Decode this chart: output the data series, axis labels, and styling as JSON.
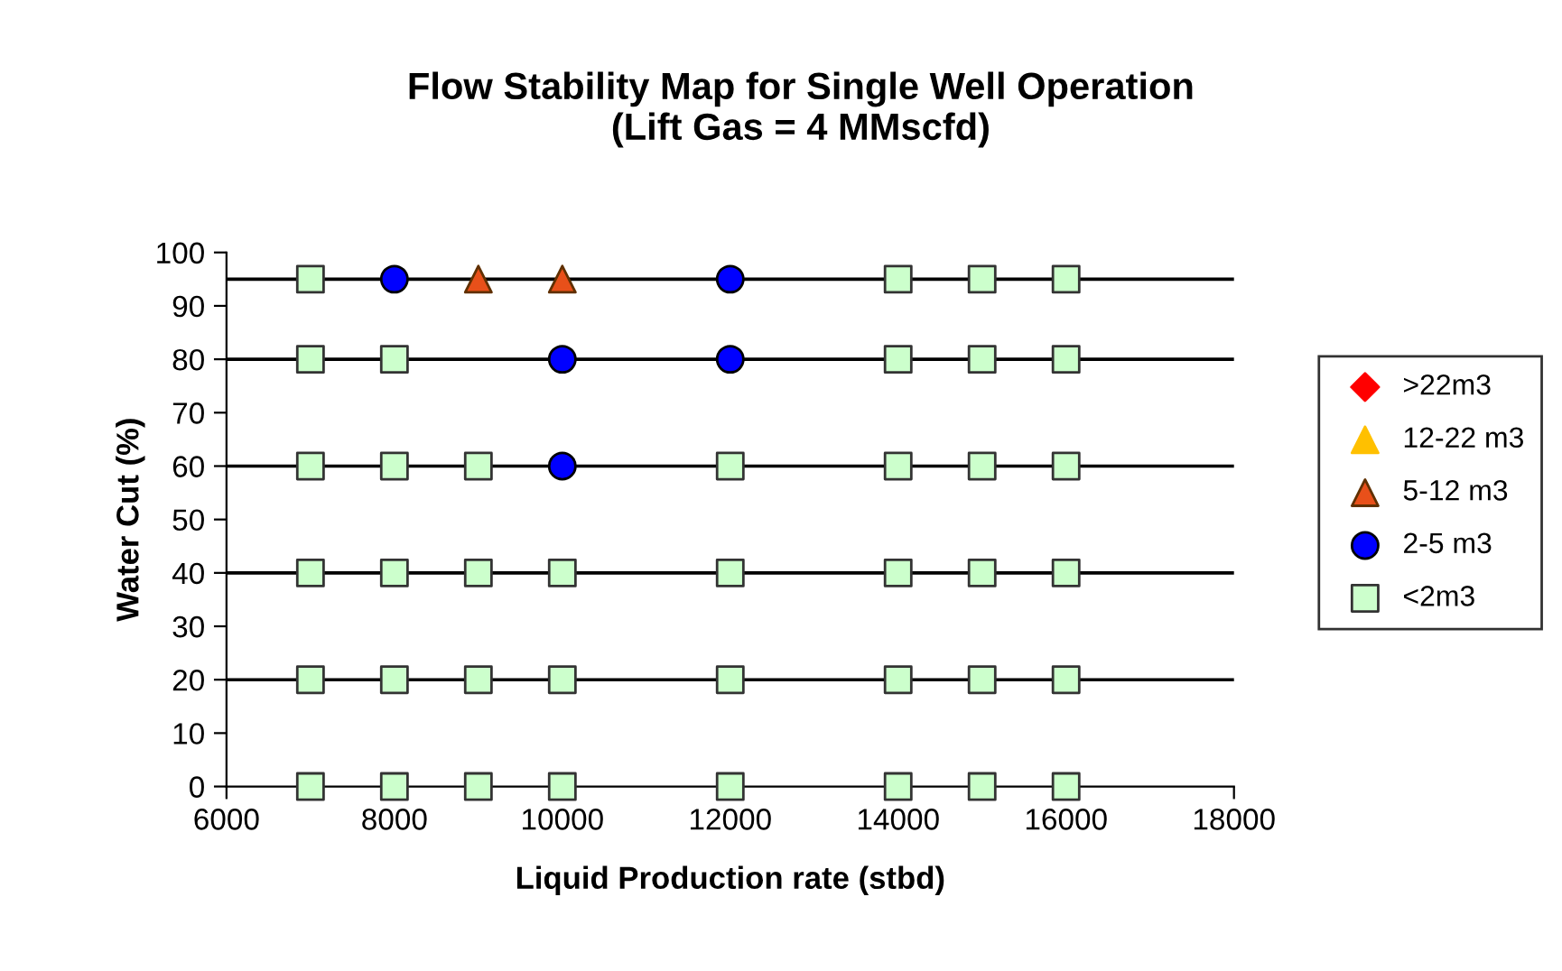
{
  "chart_data": {
    "type": "scatter",
    "title": "Flow Stability Map for Single Well Operation\n(Lift Gas = 4 MMscfd)",
    "xlabel": "Liquid Production rate (stbd)",
    "ylabel": "Water Cut (%)",
    "xlim": [
      6000,
      18000
    ],
    "xticks": [
      6000,
      8000,
      10000,
      12000,
      14000,
      16000,
      18000
    ],
    "ylim": [
      0,
      100
    ],
    "yticks": [
      0,
      10,
      20,
      30,
      40,
      50,
      60,
      70,
      80,
      90,
      100
    ],
    "grid": false,
    "legend": "right",
    "ref_lines": [
      {
        "axis": "y",
        "value": 95,
        "color": "#000000"
      },
      {
        "axis": "y",
        "value": 80,
        "color": "#000000"
      },
      {
        "axis": "y",
        "value": 60,
        "color": "#000000"
      },
      {
        "axis": "y",
        "value": 40,
        "color": "#000000"
      },
      {
        "axis": "y",
        "value": 20,
        "color": "#000000"
      }
    ],
    "series": [
      {
        "name": ">22m3",
        "color": "#ff0000",
        "marker": "diamond"
      },
      {
        "name": "12-22 m3",
        "color": "#ffc000",
        "marker": "triangle"
      },
      {
        "name": "5-12 m3",
        "color": "#e8501a",
        "marker": "triangle",
        "x": [
          9000,
          10000
        ],
        "values": [
          95,
          95
        ]
      },
      {
        "name": "2-5 m3",
        "color": "#0000ff",
        "marker": "circle",
        "x": [
          8000,
          12000,
          10000,
          12000,
          10000
        ],
        "values": [
          95,
          95,
          80,
          80,
          60
        ]
      },
      {
        "name": "<2m3",
        "color": "#ccffcc",
        "marker": "square",
        "x": [
          7000,
          14000,
          15000,
          16000,
          7000,
          8000,
          14000,
          15000,
          16000,
          7000,
          8000,
          9000,
          12000,
          14000,
          15000,
          16000,
          7000,
          8000,
          9000,
          10000,
          12000,
          14000,
          15000,
          16000,
          7000,
          8000,
          9000,
          10000,
          12000,
          14000,
          15000,
          16000,
          7000,
          8000,
          9000,
          10000,
          12000,
          14000,
          15000,
          16000
        ],
        "values": [
          95,
          95,
          95,
          95,
          80,
          80,
          80,
          80,
          80,
          60,
          60,
          60,
          60,
          60,
          60,
          60,
          40,
          40,
          40,
          40,
          40,
          40,
          40,
          40,
          20,
          20,
          20,
          20,
          20,
          20,
          20,
          20,
          0,
          0,
          0,
          0,
          0,
          0,
          0,
          0
        ]
      }
    ]
  }
}
